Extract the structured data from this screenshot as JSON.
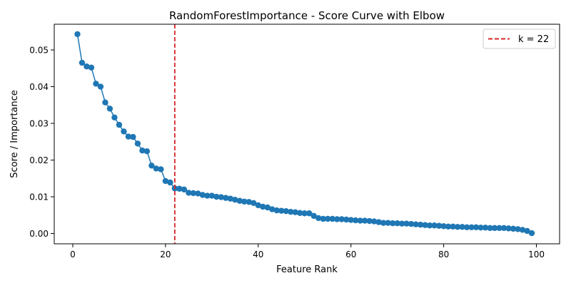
{
  "chart_data": {
    "type": "line",
    "title": "RandomForestImportance - Score Curve with Elbow",
    "xlabel": "Feature Rank",
    "ylabel": "Score / Importance",
    "xlim": [
      -4,
      105
    ],
    "ylim": [
      -0.0028,
      0.057
    ],
    "x_ticks": [
      0,
      20,
      40,
      60,
      80,
      100
    ],
    "x_tick_labels": [
      "0",
      "20",
      "40",
      "60",
      "80",
      "100"
    ],
    "y_ticks": [
      0.0,
      0.01,
      0.02,
      0.03,
      0.04,
      0.05
    ],
    "y_tick_labels": [
      "0.00",
      "0.01",
      "0.02",
      "0.03",
      "0.04",
      "0.05"
    ],
    "grid": false,
    "legend_position": "top-right",
    "series": [
      {
        "color": "#1f77b4",
        "marker": "circle",
        "x": [
          1,
          2,
          3,
          4,
          5,
          6,
          7,
          8,
          9,
          10,
          11,
          12,
          13,
          14,
          15,
          16,
          17,
          18,
          19,
          20,
          21,
          22,
          23,
          24,
          25,
          26,
          27,
          28,
          29,
          30,
          31,
          32,
          33,
          34,
          35,
          36,
          37,
          38,
          39,
          40,
          41,
          42,
          43,
          44,
          45,
          46,
          47,
          48,
          49,
          50,
          51,
          52,
          53,
          54,
          55,
          56,
          57,
          58,
          59,
          60,
          61,
          62,
          63,
          64,
          65,
          66,
          67,
          68,
          69,
          70,
          71,
          72,
          73,
          74,
          75,
          76,
          77,
          78,
          79,
          80,
          81,
          82,
          83,
          84,
          85,
          86,
          87,
          88,
          89,
          90,
          91,
          92,
          93,
          94,
          95,
          96,
          97,
          98,
          99
        ],
        "values": [
          0.0543,
          0.0465,
          0.0455,
          0.0452,
          0.0408,
          0.04,
          0.0357,
          0.034,
          0.0316,
          0.0296,
          0.0278,
          0.0264,
          0.0263,
          0.0245,
          0.0226,
          0.0224,
          0.0185,
          0.0177,
          0.0175,
          0.0143,
          0.0139,
          0.0123,
          0.0122,
          0.012,
          0.0111,
          0.011,
          0.0109,
          0.0105,
          0.0103,
          0.0103,
          0.01,
          0.0099,
          0.0097,
          0.0095,
          0.0092,
          0.0089,
          0.0087,
          0.0086,
          0.0083,
          0.0077,
          0.0073,
          0.0071,
          0.0066,
          0.0063,
          0.0062,
          0.0061,
          0.0059,
          0.0058,
          0.0056,
          0.0055,
          0.0055,
          0.0048,
          0.0042,
          0.004,
          0.004,
          0.004,
          0.0039,
          0.0039,
          0.0038,
          0.0037,
          0.0036,
          0.0035,
          0.0035,
          0.0034,
          0.0033,
          0.0031,
          0.0029,
          0.0029,
          0.0028,
          0.0028,
          0.0027,
          0.0027,
          0.0026,
          0.0025,
          0.0024,
          0.0023,
          0.0022,
          0.0022,
          0.0021,
          0.002,
          0.0019,
          0.0019,
          0.0018,
          0.0018,
          0.0017,
          0.0017,
          0.0017,
          0.0016,
          0.0016,
          0.0015,
          0.0015,
          0.0015,
          0.0015,
          0.0014,
          0.0013,
          0.0012,
          0.001,
          0.0007,
          0.0001
        ]
      }
    ],
    "elbow": {
      "x": 22,
      "label": "k = 22",
      "color": "#d62728",
      "style": "dashed"
    }
  }
}
